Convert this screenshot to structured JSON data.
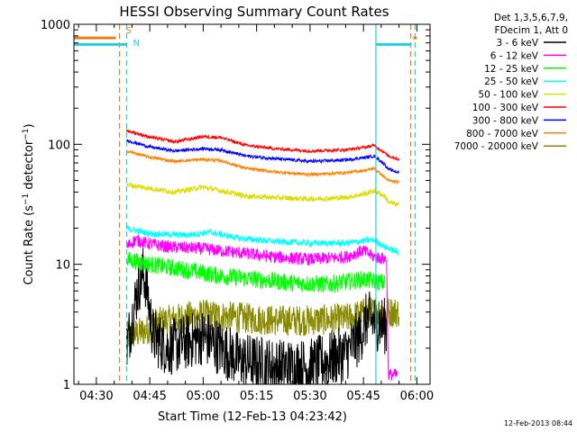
{
  "chart_data": {
    "type": "line",
    "title": "HESSI Observing Summary Count Rates",
    "xlabel": "Start Time (12-Feb-13 04:23:42)",
    "ylabel": "Count Rate (s⁻¹ detector⁻¹)",
    "ylabel_parts": {
      "base": "Count Rate (s",
      "exp1": "−1",
      "mid": " detector",
      "exp2": "−1",
      "end": ")"
    },
    "yscale": "log",
    "ylim": [
      1,
      1000
    ],
    "xlim_minutes": [
      23.7,
      123.7
    ],
    "grid": false,
    "legend_position": "right",
    "timestamp": "12-Feb-2013 08:44",
    "x_ticks": [
      {
        "label": "04:30",
        "minute": 30
      },
      {
        "label": "04:45",
        "minute": 45
      },
      {
        "label": "05:00",
        "minute": 60
      },
      {
        "label": "05:15",
        "minute": 75
      },
      {
        "label": "05:30",
        "minute": 90
      },
      {
        "label": "05:45",
        "minute": 105
      },
      {
        "label": "06:00",
        "minute": 120
      }
    ],
    "y_ticks": [
      {
        "label": "1",
        "value": 1
      },
      {
        "label": "10",
        "value": 10
      },
      {
        "label": "100",
        "value": 100
      },
      {
        "label": "1000",
        "value": 1000
      }
    ],
    "legend_header": [
      "Det 1,3,5,6,7,9,",
      "FDecim 1, Att 0"
    ],
    "markers": [
      {
        "label": "S",
        "minute": 36.5,
        "color": "#e8801a"
      },
      {
        "label": "N",
        "minute": 38.5,
        "color": "#20d0e0"
      }
    ],
    "vlines": [
      {
        "minute": 36.5,
        "color": "#e8801a",
        "dashed": true
      },
      {
        "minute": 38.5,
        "color": "#20d0e0",
        "dashed": true
      },
      {
        "minute": 108.5,
        "color": "#20d0e0",
        "dashed": false
      },
      {
        "minute": 118.3,
        "color": "#e8801a",
        "dashed": true
      },
      {
        "minute": 119.5,
        "color": "#20d0e0",
        "dashed": true
      }
    ],
    "flag_bars": [
      {
        "color": "#e8801a",
        "value": 770,
        "segments": [
          [
            23.7,
            35.5
          ],
          [
            119.0,
            120.0
          ]
        ]
      },
      {
        "color": "#20d0e0",
        "value": 680,
        "segments": [
          [
            23.7,
            38.5
          ],
          [
            108.5,
            118.5
          ]
        ]
      }
    ],
    "series": [
      {
        "name": "3 - 6 keV",
        "color": "#000000",
        "noise": 0.55,
        "points": [
          [
            38.5,
            2
          ],
          [
            40,
            3.5
          ],
          [
            41.5,
            6
          ],
          [
            43,
            8.5
          ],
          [
            44,
            7
          ],
          [
            45,
            4
          ],
          [
            46,
            2.5
          ],
          [
            50,
            2
          ],
          [
            60,
            2.5
          ],
          [
            70,
            1.6
          ],
          [
            80,
            1.4
          ],
          [
            90,
            1.4
          ],
          [
            100,
            1.8
          ],
          [
            104,
            2.5
          ],
          [
            106,
            3.5
          ],
          [
            110,
            3.2
          ],
          [
            111.5,
            3
          ]
        ]
      },
      {
        "name": "6 - 12 keV",
        "color": "#ff00ff",
        "noise": 0.12,
        "points": [
          [
            38.5,
            14
          ],
          [
            41,
            16
          ],
          [
            44,
            15
          ],
          [
            50,
            14
          ],
          [
            60,
            13.5
          ],
          [
            70,
            12.5
          ],
          [
            80,
            11.5
          ],
          [
            90,
            11
          ],
          [
            100,
            11.5
          ],
          [
            105,
            13
          ],
          [
            108,
            11.5
          ],
          [
            111.5,
            11
          ],
          [
            112,
            1.2
          ],
          [
            114.5,
            1.2
          ]
        ]
      },
      {
        "name": "12 - 25 keV",
        "color": "#00ff00",
        "noise": 0.17,
        "points": [
          [
            38.5,
            11
          ],
          [
            45,
            10
          ],
          [
            55,
            9
          ],
          [
            65,
            8
          ],
          [
            75,
            7.5
          ],
          [
            85,
            7
          ],
          [
            95,
            6.8
          ],
          [
            105,
            7.5
          ],
          [
            111,
            7
          ]
        ]
      },
      {
        "name": "25 - 50 keV",
        "color": "#00ffff",
        "noise": 0.06,
        "points": [
          [
            38.5,
            20
          ],
          [
            45,
            18
          ],
          [
            55,
            17.5
          ],
          [
            62,
            18.5
          ],
          [
            70,
            16.5
          ],
          [
            80,
            15.5
          ],
          [
            90,
            15
          ],
          [
            100,
            15
          ],
          [
            108,
            16
          ],
          [
            111,
            14
          ],
          [
            115,
            12.5
          ]
        ]
      },
      {
        "name": "50 - 100 keV",
        "color": "#dddd00",
        "noise": 0.05,
        "points": [
          [
            38.5,
            46
          ],
          [
            45,
            43
          ],
          [
            52,
            40
          ],
          [
            60,
            44
          ],
          [
            65,
            41
          ],
          [
            72,
            37
          ],
          [
            80,
            36
          ],
          [
            90,
            35
          ],
          [
            100,
            36
          ],
          [
            106,
            39
          ],
          [
            108,
            41
          ],
          [
            111,
            37
          ],
          [
            112,
            33
          ],
          [
            115,
            31
          ]
        ]
      },
      {
        "name": "100 - 300 keV",
        "color": "#ff0000",
        "noise": 0.03,
        "points": [
          [
            38.5,
            130
          ],
          [
            45,
            115
          ],
          [
            52,
            105
          ],
          [
            60,
            116
          ],
          [
            65,
            114
          ],
          [
            72,
            98
          ],
          [
            80,
            92
          ],
          [
            90,
            88
          ],
          [
            100,
            90
          ],
          [
            106,
            95
          ],
          [
            108,
            98
          ],
          [
            111,
            85
          ],
          [
            112,
            80
          ],
          [
            115,
            75
          ]
        ]
      },
      {
        "name": "300 - 800 keV",
        "color": "#0000ff",
        "noise": 0.03,
        "points": [
          [
            38.5,
            108
          ],
          [
            45,
            95
          ],
          [
            52,
            88
          ],
          [
            60,
            92
          ],
          [
            65,
            90
          ],
          [
            72,
            80
          ],
          [
            80,
            76
          ],
          [
            90,
            72
          ],
          [
            100,
            74
          ],
          [
            106,
            78
          ],
          [
            108,
            80
          ],
          [
            111,
            68
          ],
          [
            112,
            62
          ],
          [
            115,
            58
          ]
        ]
      },
      {
        "name": "800 - 7000 keV",
        "color": "#ff8000",
        "noise": 0.03,
        "points": [
          [
            38.5,
            88
          ],
          [
            45,
            78
          ],
          [
            52,
            72
          ],
          [
            60,
            75
          ],
          [
            65,
            73
          ],
          [
            72,
            63
          ],
          [
            80,
            59
          ],
          [
            90,
            56
          ],
          [
            100,
            58
          ],
          [
            106,
            61
          ],
          [
            108,
            63
          ],
          [
            111,
            53
          ],
          [
            112,
            50
          ],
          [
            115,
            48
          ]
        ]
      },
      {
        "name": "7000 - 20000 keV",
        "color": "#8a8a00",
        "noise": 0.3,
        "points": [
          [
            38.5,
            2.5
          ],
          [
            44,
            2.8
          ],
          [
            46,
            3.2
          ],
          [
            52,
            3.5
          ],
          [
            60,
            3.8
          ],
          [
            70,
            3.6
          ],
          [
            80,
            3.4
          ],
          [
            90,
            3.4
          ],
          [
            100,
            3.5
          ],
          [
            106,
            4
          ],
          [
            110,
            4
          ],
          [
            115,
            4
          ]
        ]
      }
    ]
  }
}
